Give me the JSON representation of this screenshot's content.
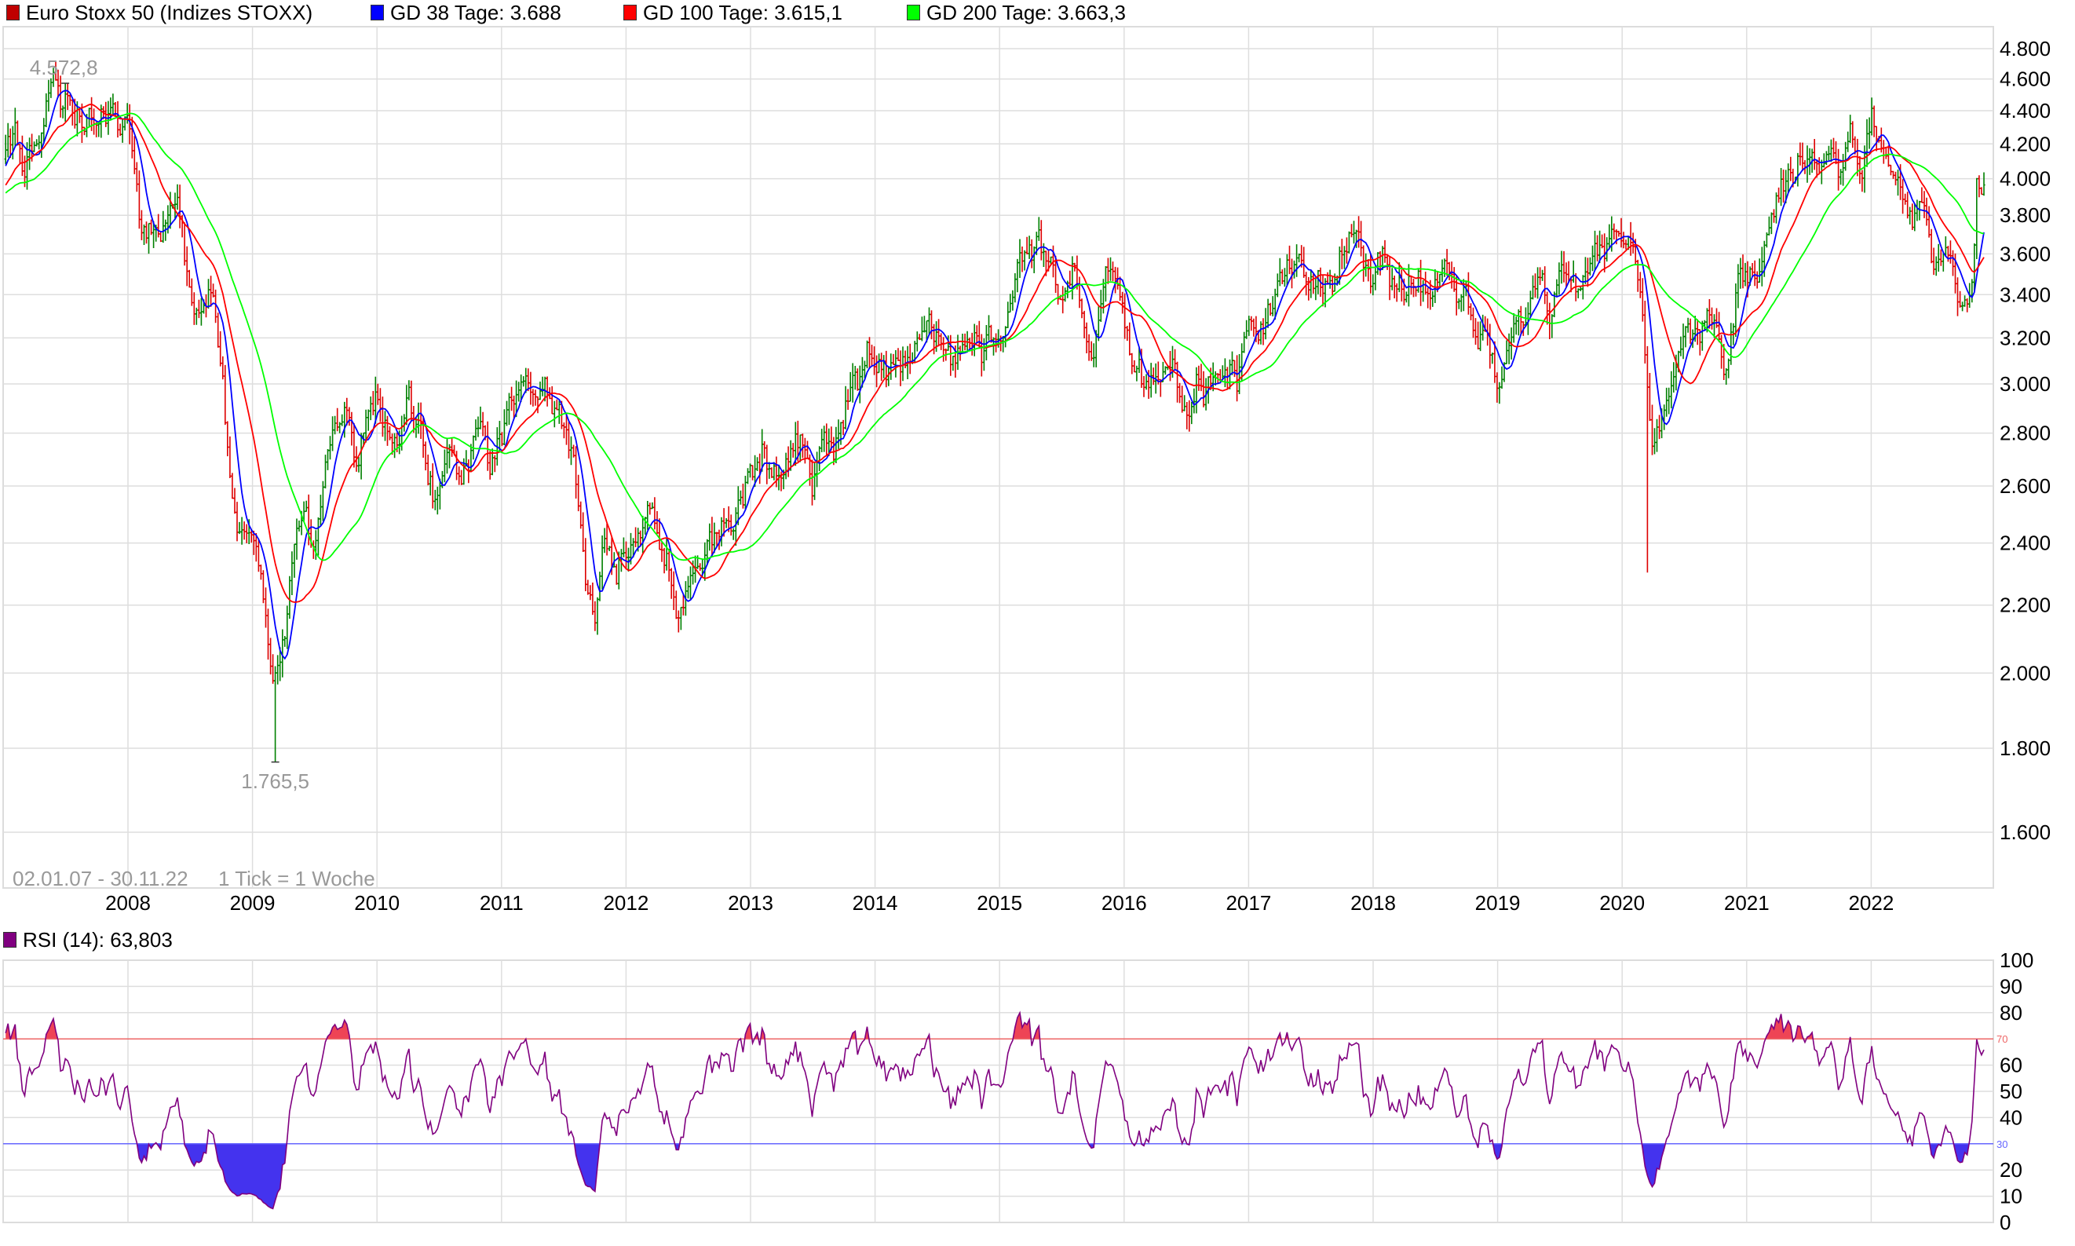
{
  "legend": {
    "items": [
      {
        "label": "Euro Stoxx 50 (Indizes STOXX)",
        "color": "#c00000"
      },
      {
        "label": "GD 38 Tage: 3.688",
        "color": "#0000ff"
      },
      {
        "label": "GD 100 Tage: 3.615,1",
        "color": "#ff0000"
      },
      {
        "label": "GD 200 Tage: 3.663,3",
        "color": "#00ff00"
      }
    ],
    "rsi": {
      "label": "RSI (14): 63,803",
      "color": "#800080"
    }
  },
  "chart_data": [
    {
      "type": "ohlc",
      "scale": "log",
      "grid": true,
      "interval": "weekly",
      "date_range_label": "02.01.07 - 30.11.22",
      "interval_label": "1 Tick = 1 Woche",
      "date_range": [
        "2007-01-02",
        "2022-11-30"
      ],
      "ylim": [
        1500,
        4950
      ],
      "y_ticks": [
        1600,
        1800,
        2000,
        2200,
        2400,
        2600,
        2800,
        3000,
        3200,
        3400,
        3600,
        3800,
        4000,
        4200,
        4400,
        4600,
        4800
      ],
      "y_tick_labels": [
        "1.600",
        "1.800",
        "2.000",
        "2.200",
        "2.400",
        "2.600",
        "2.800",
        "3.000",
        "3.200",
        "3.400",
        "3.600",
        "3.800",
        "4.000",
        "4.200",
        "4.400",
        "4.600",
        "4.800"
      ],
      "x_ticks": [
        "2008",
        "2009",
        "2010",
        "2011",
        "2012",
        "2013",
        "2014",
        "2015",
        "2016",
        "2017",
        "2018",
        "2019",
        "2020",
        "2021",
        "2022"
      ],
      "annotations": [
        {
          "label": "4.572,8",
          "value": 4572.8,
          "date": "2007-07",
          "kind": "high"
        },
        {
          "label": "1.765,5",
          "value": 1765.5,
          "date": "2009-03",
          "kind": "low"
        }
      ],
      "intra_week_extremes": [
        {
          "date": "2007-07",
          "high": 4572.8
        },
        {
          "date": "2009-03",
          "low": 1765.5
        },
        {
          "date": "2020-03",
          "low": 2302.8
        }
      ],
      "series": [
        {
          "name": "Euro Stoxx 50 (Indizes STOXX)",
          "kind": "ohlc",
          "up_color": "#008000",
          "down_color": "#dd0000"
        },
        {
          "name": "GD 38 Tage",
          "kind": "sma",
          "days": 38,
          "last": 3688,
          "color": "#0000ff"
        },
        {
          "name": "GD 100 Tage",
          "kind": "sma",
          "days": 100,
          "last": 3615.1,
          "color": "#ff0000"
        },
        {
          "name": "GD 200 Tage",
          "kind": "sma",
          "days": 200,
          "last": 3663.3,
          "color": "#00ff00"
        }
      ],
      "monthly_close": {
        "2007": [
          4180,
          4090,
          4180,
          4390,
          4510,
          4490,
          4320,
          4300,
          4380,
          4490,
          4340,
          4400
        ],
        "2008": [
          3790,
          3720,
          3630,
          3830,
          3780,
          3350,
          3370,
          3370,
          3040,
          2590,
          2430,
          2450
        ],
        "2009": [
          2240,
          1980,
          2070,
          2380,
          2450,
          2400,
          2640,
          2780,
          2870,
          2740,
          2820,
          2960
        ],
        "2010": [
          2780,
          2730,
          2930,
          2820,
          2610,
          2570,
          2740,
          2620,
          2740,
          2840,
          2650,
          2790
        ],
        "2011": [
          2950,
          3010,
          2910,
          3010,
          2860,
          2850,
          2700,
          2300,
          2180,
          2380,
          2330,
          2320
        ],
        "2012": [
          2420,
          2510,
          2480,
          2310,
          2120,
          2260,
          2330,
          2440,
          2450,
          2500,
          2580,
          2640
        ],
        "2013": [
          2700,
          2630,
          2620,
          2710,
          2770,
          2600,
          2770,
          2720,
          2890,
          3070,
          3090,
          3110
        ],
        "2014": [
          3010,
          3150,
          3160,
          3200,
          3240,
          3230,
          3120,
          3170,
          3230,
          3110,
          3250,
          3150
        ],
        "2015": [
          3350,
          3600,
          3700,
          3620,
          3570,
          3420,
          3600,
          3270,
          3100,
          3420,
          3510,
          3270
        ],
        "2016": [
          3050,
          2950,
          3000,
          3030,
          3060,
          2860,
          2990,
          3020,
          3000,
          3050,
          3050,
          3290
        ],
        "2017": [
          3230,
          3320,
          3500,
          3560,
          3550,
          3440,
          3450,
          3420,
          3590,
          3670,
          3570,
          3500
        ],
        "2018": [
          3610,
          3440,
          3360,
          3530,
          3400,
          3400,
          3530,
          3390,
          3400,
          3200,
          3170,
          3000
        ],
        "2019": [
          3160,
          3300,
          3350,
          3510,
          3280,
          3470,
          3470,
          3430,
          3570,
          3600,
          3700,
          3740
        ],
        "2020": [
          3640,
          3330,
          2790,
          2930,
          3050,
          3230,
          3170,
          3270,
          3190,
          2960,
          3490,
          3550
        ],
        "2021": [
          3480,
          3640,
          3920,
          3970,
          4040,
          4060,
          4090,
          4200,
          4050,
          4250,
          4060,
          4300
        ],
        "2022": [
          4170,
          3920,
          3900,
          3800,
          3790,
          3450,
          3710,
          3520,
          3280,
          3620,
          3965
        ]
      }
    },
    {
      "type": "line",
      "name": "RSI (14)",
      "period": 14,
      "last": 63.803,
      "color": "#800080",
      "ylim": [
        0,
        100
      ],
      "grid": true,
      "y_ticks": [
        0,
        10,
        20,
        40,
        50,
        60,
        80,
        90,
        100
      ],
      "y_tick_labels": [
        "0",
        "10",
        "20",
        "40",
        "50",
        "60",
        "80",
        "90",
        "100"
      ],
      "levels": [
        {
          "value": 70,
          "label": "70",
          "color": "#ee6666",
          "fill": "#ee4455"
        },
        {
          "value": 30,
          "label": "30",
          "color": "#6666ff",
          "fill": "#4433ee"
        }
      ]
    }
  ]
}
